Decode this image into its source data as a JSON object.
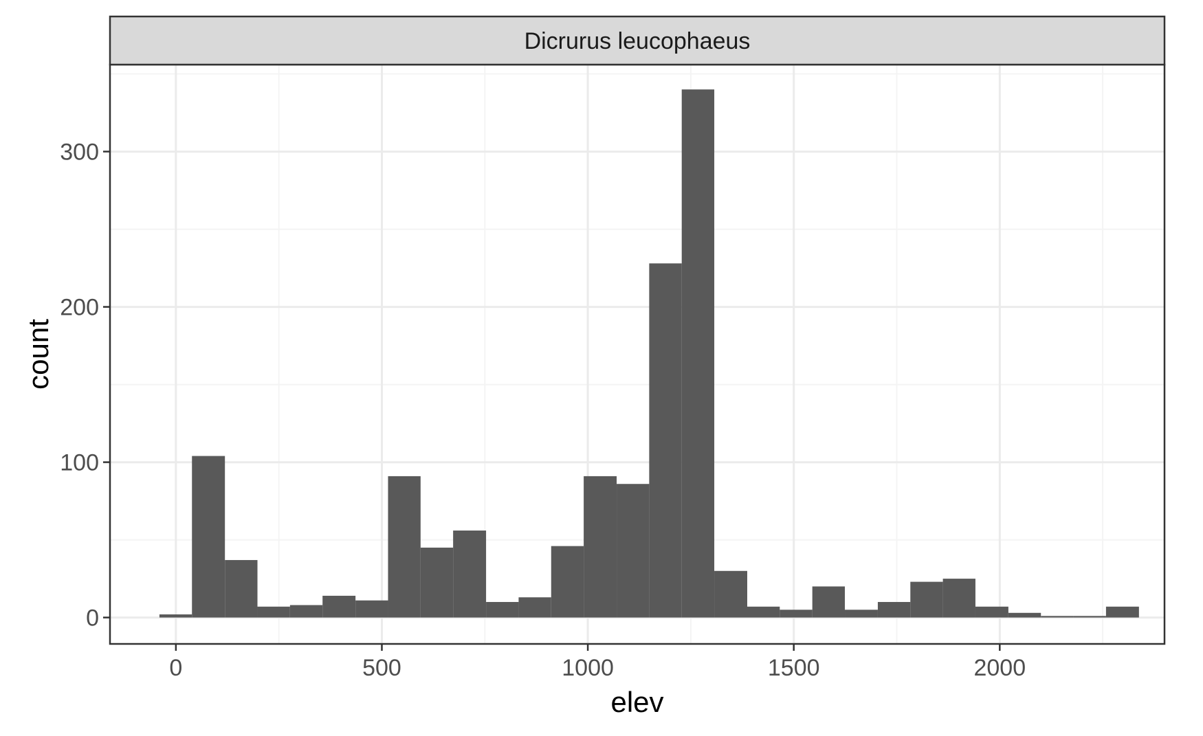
{
  "chart_data": {
    "type": "bar",
    "subtype": "histogram",
    "facet_label": "Dicrurus leucophaeus",
    "xlabel": "elev",
    "ylabel": "count",
    "xlim": [
      -160,
      2400
    ],
    "ylim": [
      -17,
      356
    ],
    "x_ticks": [
      0,
      500,
      1000,
      1500,
      2000
    ],
    "x_minor_ticks": [
      250,
      750,
      1250,
      1750,
      2250
    ],
    "y_ticks": [
      0,
      100,
      200,
      300
    ],
    "y_minor_ticks": [
      50,
      150,
      250,
      350
    ],
    "bin_width": 79,
    "bins": [
      {
        "x0": -40,
        "x1": 39,
        "count": 2
      },
      {
        "x0": 39,
        "x1": 119,
        "count": 104
      },
      {
        "x0": 119,
        "x1": 198,
        "count": 37
      },
      {
        "x0": 198,
        "x1": 277,
        "count": 7
      },
      {
        "x0": 277,
        "x1": 356,
        "count": 8
      },
      {
        "x0": 356,
        "x1": 436,
        "count": 14
      },
      {
        "x0": 436,
        "x1": 515,
        "count": 11
      },
      {
        "x0": 515,
        "x1": 594,
        "count": 91
      },
      {
        "x0": 594,
        "x1": 673,
        "count": 45
      },
      {
        "x0": 673,
        "x1": 753,
        "count": 56
      },
      {
        "x0": 753,
        "x1": 832,
        "count": 10
      },
      {
        "x0": 832,
        "x1": 911,
        "count": 13
      },
      {
        "x0": 911,
        "x1": 990,
        "count": 46
      },
      {
        "x0": 990,
        "x1": 1070,
        "count": 91
      },
      {
        "x0": 1070,
        "x1": 1149,
        "count": 86
      },
      {
        "x0": 1149,
        "x1": 1228,
        "count": 228
      },
      {
        "x0": 1228,
        "x1": 1307,
        "count": 340
      },
      {
        "x0": 1307,
        "x1": 1387,
        "count": 30
      },
      {
        "x0": 1387,
        "x1": 1466,
        "count": 7
      },
      {
        "x0": 1466,
        "x1": 1545,
        "count": 5
      },
      {
        "x0": 1545,
        "x1": 1624,
        "count": 20
      },
      {
        "x0": 1624,
        "x1": 1704,
        "count": 5
      },
      {
        "x0": 1704,
        "x1": 1783,
        "count": 10
      },
      {
        "x0": 1783,
        "x1": 1862,
        "count": 23
      },
      {
        "x0": 1862,
        "x1": 1941,
        "count": 25
      },
      {
        "x0": 1941,
        "x1": 2021,
        "count": 7
      },
      {
        "x0": 2021,
        "x1": 2100,
        "count": 3
      },
      {
        "x0": 2100,
        "x1": 2179,
        "count": 1
      },
      {
        "x0": 2179,
        "x1": 2258,
        "count": 1
      },
      {
        "x0": 2258,
        "x1": 2338,
        "count": 7
      }
    ],
    "grid": true,
    "legend": "none"
  },
  "colors": {
    "bar_fill": "#595959",
    "panel_border": "#333333",
    "strip_background": "#d9d9d9",
    "grid_major": "#ebebeb",
    "grid_minor": "#f4f4f4",
    "tick_text": "#4d4d4d",
    "axis_title": "#000000"
  }
}
